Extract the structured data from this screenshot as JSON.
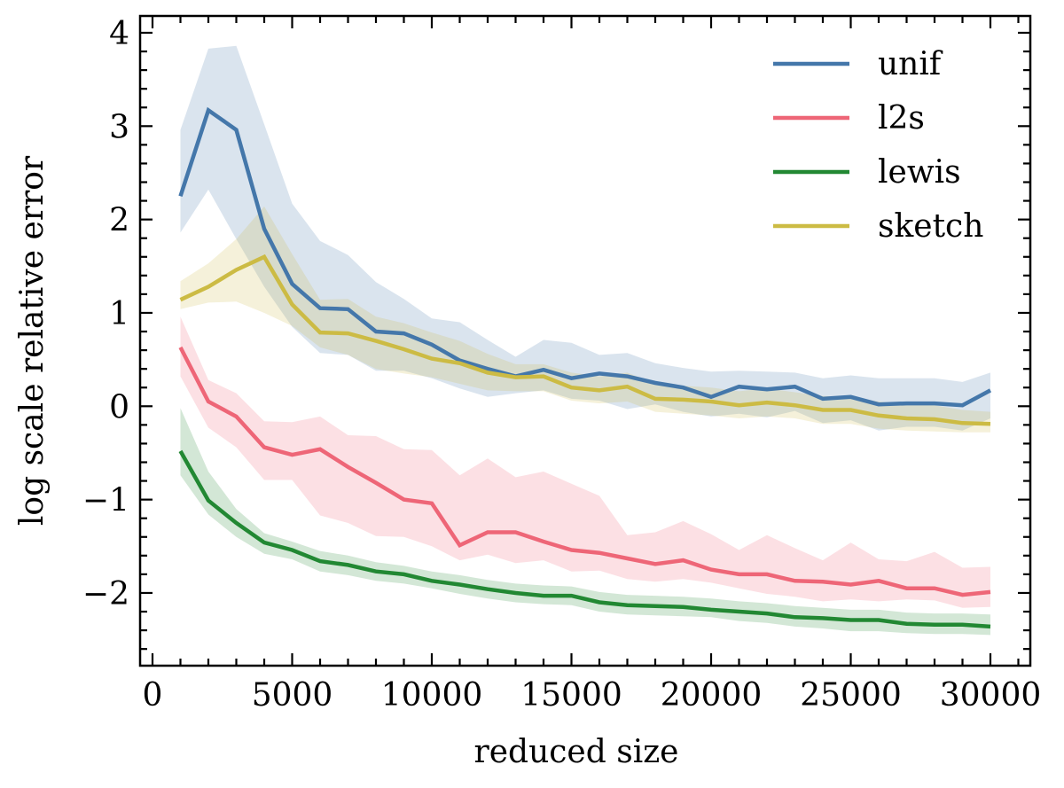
{
  "chart_data": {
    "type": "line",
    "title": "",
    "xlabel": "reduced size",
    "ylabel": "log scale relative error",
    "xlim": [
      -500,
      31500
    ],
    "ylim": [
      -2.75,
      4.2
    ],
    "xticks": [
      0,
      5000,
      10000,
      15000,
      20000,
      25000,
      30000
    ],
    "xtick_labels": [
      "0",
      "5000",
      "10000",
      "15000",
      "20000",
      "25000",
      "30000"
    ],
    "yticks": [
      -2,
      -1,
      0,
      1,
      2,
      3,
      4
    ],
    "ytick_labels": [
      "−2",
      "−1",
      "0",
      "1",
      "2",
      "3",
      "4"
    ],
    "x_minor_step": 1000,
    "y_minor_step": 0.2,
    "grid": false,
    "legend_position": "top-right",
    "x": [
      1000,
      2000,
      3000,
      4000,
      5000,
      6000,
      7000,
      8000,
      9000,
      10000,
      11000,
      12000,
      13000,
      14000,
      15000,
      16000,
      17000,
      18000,
      19000,
      20000,
      21000,
      22000,
      23000,
      24000,
      25000,
      26000,
      27000,
      28000,
      29000,
      30000
    ],
    "series": [
      {
        "name": "unif",
        "color": "#4477aa",
        "values": [
          2.25,
          3.17,
          2.96,
          1.9,
          1.31,
          1.05,
          1.04,
          0.8,
          0.78,
          0.66,
          0.49,
          0.4,
          0.32,
          0.39,
          0.3,
          0.35,
          0.32,
          0.25,
          0.2,
          0.1,
          0.21,
          0.18,
          0.21,
          0.08,
          0.1,
          0.02,
          0.03,
          0.03,
          0.01,
          0.17
        ],
        "upper": [
          2.96,
          3.83,
          3.86,
          3.02,
          2.17,
          1.77,
          1.62,
          1.33,
          1.15,
          0.94,
          0.9,
          0.71,
          0.53,
          0.71,
          0.68,
          0.55,
          0.57,
          0.46,
          0.41,
          0.37,
          0.38,
          0.37,
          0.36,
          0.3,
          0.33,
          0.3,
          0.3,
          0.3,
          0.26,
          0.36
        ],
        "lower": [
          1.86,
          2.32,
          1.79,
          1.28,
          0.85,
          0.57,
          0.55,
          0.38,
          0.38,
          0.3,
          0.19,
          0.1,
          0.14,
          0.17,
          0.08,
          0.06,
          -0.03,
          0.02,
          -0.06,
          -0.11,
          -0.08,
          -0.12,
          -0.05,
          -0.18,
          -0.15,
          -0.26,
          -0.22,
          -0.22,
          -0.26,
          -0.13
        ]
      },
      {
        "name": "l2s",
        "color": "#ee6677",
        "values": [
          0.63,
          0.05,
          -0.11,
          -0.44,
          -0.52,
          -0.46,
          -0.65,
          -0.82,
          -1.0,
          -1.04,
          -1.49,
          -1.35,
          -1.35,
          -1.45,
          -1.54,
          -1.57,
          -1.63,
          -1.69,
          -1.65,
          -1.75,
          -1.8,
          -1.8,
          -1.87,
          -1.88,
          -1.91,
          -1.87,
          -1.95,
          -1.95,
          -2.02,
          -1.99
        ],
        "upper": [
          0.96,
          0.28,
          0.14,
          -0.16,
          -0.17,
          -0.11,
          -0.31,
          -0.32,
          -0.46,
          -0.47,
          -0.74,
          -0.56,
          -0.76,
          -0.7,
          -0.83,
          -0.96,
          -1.38,
          -1.35,
          -1.23,
          -1.37,
          -1.54,
          -1.38,
          -1.52,
          -1.65,
          -1.46,
          -1.64,
          -1.66,
          -1.56,
          -1.73,
          -1.72
        ],
        "lower": [
          0.32,
          -0.23,
          -0.44,
          -0.79,
          -0.79,
          -1.17,
          -1.25,
          -1.39,
          -1.4,
          -1.5,
          -1.65,
          -1.59,
          -1.68,
          -1.65,
          -1.77,
          -1.76,
          -1.85,
          -1.88,
          -1.85,
          -1.89,
          -1.95,
          -2.01,
          -2.04,
          -2.09,
          -2.07,
          -2.09,
          -2.07,
          -2.08,
          -2.16,
          -2.15
        ]
      },
      {
        "name": "lewis",
        "color": "#228833",
        "values": [
          -0.48,
          -1.01,
          -1.25,
          -1.46,
          -1.54,
          -1.66,
          -1.7,
          -1.77,
          -1.8,
          -1.87,
          -1.91,
          -1.96,
          -2.0,
          -2.03,
          -2.03,
          -2.1,
          -2.13,
          -2.14,
          -2.15,
          -2.18,
          -2.2,
          -2.22,
          -2.26,
          -2.27,
          -2.29,
          -2.29,
          -2.33,
          -2.34,
          -2.34,
          -2.36
        ],
        "upper": [
          -0.02,
          -0.7,
          -1.1,
          -1.36,
          -1.45,
          -1.55,
          -1.6,
          -1.67,
          -1.71,
          -1.77,
          -1.81,
          -1.86,
          -1.9,
          -1.92,
          -1.93,
          -1.99,
          -2.02,
          -2.03,
          -2.04,
          -2.06,
          -2.09,
          -2.11,
          -2.14,
          -2.16,
          -2.18,
          -2.18,
          -2.21,
          -2.22,
          -2.22,
          -2.23
        ],
        "lower": [
          -0.74,
          -1.16,
          -1.4,
          -1.58,
          -1.64,
          -1.77,
          -1.81,
          -1.87,
          -1.9,
          -1.95,
          -2.01,
          -2.06,
          -2.1,
          -2.12,
          -2.13,
          -2.2,
          -2.23,
          -2.24,
          -2.25,
          -2.26,
          -2.3,
          -2.32,
          -2.36,
          -2.38,
          -2.41,
          -2.41,
          -2.43,
          -2.44,
          -2.44,
          -2.45
        ]
      },
      {
        "name": "sketch",
        "color": "#ccbb44",
        "values": [
          1.14,
          1.28,
          1.46,
          1.6,
          1.09,
          0.79,
          0.78,
          0.7,
          0.61,
          0.51,
          0.46,
          0.36,
          0.31,
          0.32,
          0.2,
          0.17,
          0.21,
          0.08,
          0.07,
          0.05,
          0.01,
          0.04,
          0.01,
          -0.04,
          -0.04,
          -0.1,
          -0.13,
          -0.14,
          -0.18,
          -0.19
        ],
        "upper": [
          1.34,
          1.53,
          1.79,
          2.14,
          1.63,
          1.14,
          1.15,
          0.96,
          0.89,
          0.79,
          0.7,
          0.56,
          0.45,
          0.45,
          0.36,
          0.32,
          0.36,
          0.24,
          0.22,
          0.2,
          0.16,
          0.19,
          0.15,
          0.11,
          0.1,
          0.05,
          0.02,
          0.01,
          -0.04,
          -0.06
        ],
        "lower": [
          1.04,
          1.11,
          1.12,
          1.0,
          0.86,
          0.63,
          0.55,
          0.4,
          0.35,
          0.31,
          0.24,
          0.17,
          0.16,
          0.16,
          0.06,
          0.03,
          0.05,
          -0.06,
          -0.08,
          -0.1,
          -0.13,
          -0.11,
          -0.13,
          -0.19,
          -0.19,
          -0.24,
          -0.26,
          -0.27,
          -0.28,
          -0.28
        ]
      }
    ]
  }
}
